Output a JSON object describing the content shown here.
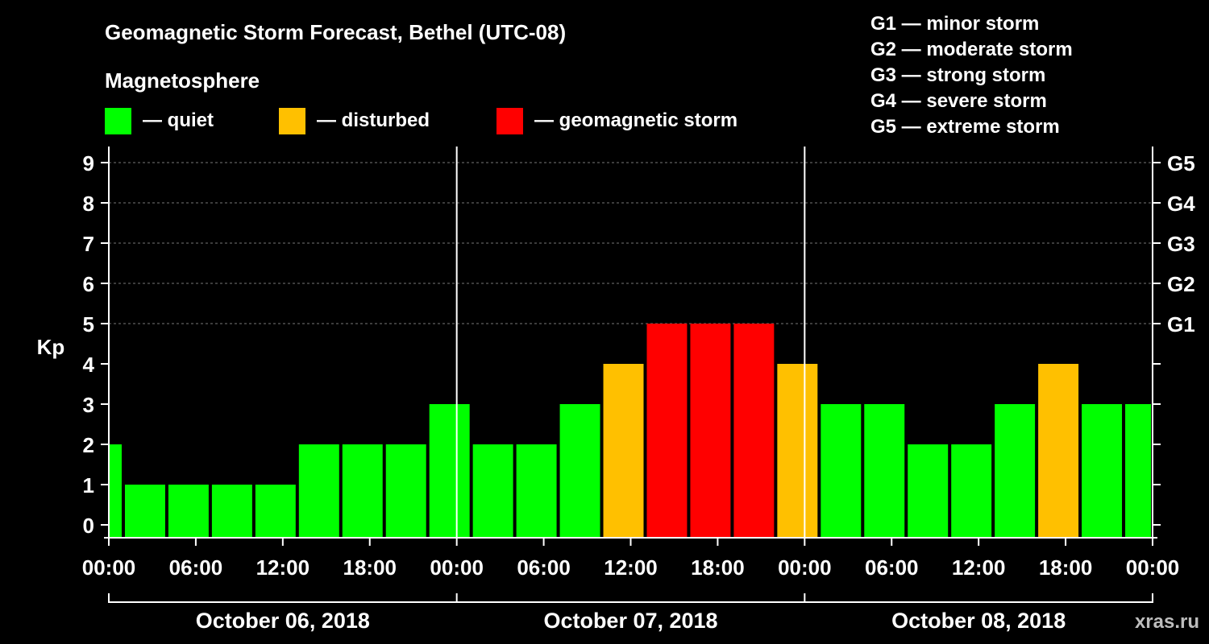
{
  "chart_data": {
    "type": "bar",
    "title": "Geomagnetic Storm Forecast, Bethel (UTC-08)",
    "legend_title": "Magnetosphere",
    "legend": [
      {
        "label": "— quiet",
        "color": "#00ff00"
      },
      {
        "label": "— disturbed",
        "color": "#ffc000"
      },
      {
        "label": "— geomagnetic storm",
        "color": "#ff0000"
      }
    ],
    "storm_scale": [
      "G1 — minor storm",
      "G2 — moderate storm",
      "G3 — strong storm",
      "G4 — severe storm",
      "G5 — extreme storm"
    ],
    "ylabel": "Kp",
    "ylim": [
      0,
      9
    ],
    "y_ticks": [
      "0",
      "1",
      "2",
      "3",
      "4",
      "5",
      "6",
      "7",
      "8",
      "9"
    ],
    "right_ticks": [
      {
        "kp": 5,
        "label": "G1"
      },
      {
        "kp": 6,
        "label": "G2"
      },
      {
        "kp": 7,
        "label": "G3"
      },
      {
        "kp": 8,
        "label": "G4"
      },
      {
        "kp": 9,
        "label": "G5"
      }
    ],
    "x_ticks": [
      "00:00",
      "06:00",
      "12:00",
      "18:00",
      "00:00",
      "06:00",
      "12:00",
      "18:00",
      "00:00",
      "06:00",
      "12:00",
      "18:00",
      "00:00"
    ],
    "dates": [
      "October 06, 2018",
      "October 07, 2018",
      "October 08, 2018"
    ],
    "xlim_hours": [
      0,
      72
    ],
    "bars": [
      {
        "start": 0,
        "end": 1,
        "kp": 2
      },
      {
        "start": 1,
        "end": 4,
        "kp": 1
      },
      {
        "start": 4,
        "end": 7,
        "kp": 1
      },
      {
        "start": 7,
        "end": 10,
        "kp": 1
      },
      {
        "start": 10,
        "end": 13,
        "kp": 1
      },
      {
        "start": 13,
        "end": 16,
        "kp": 2
      },
      {
        "start": 16,
        "end": 19,
        "kp": 2
      },
      {
        "start": 19,
        "end": 22,
        "kp": 2
      },
      {
        "start": 22,
        "end": 25,
        "kp": 3
      },
      {
        "start": 25,
        "end": 28,
        "kp": 2
      },
      {
        "start": 28,
        "end": 31,
        "kp": 2
      },
      {
        "start": 31,
        "end": 34,
        "kp": 3
      },
      {
        "start": 34,
        "end": 37,
        "kp": 4
      },
      {
        "start": 37,
        "end": 40,
        "kp": 5
      },
      {
        "start": 40,
        "end": 43,
        "kp": 5
      },
      {
        "start": 43,
        "end": 46,
        "kp": 5
      },
      {
        "start": 46,
        "end": 49,
        "kp": 4
      },
      {
        "start": 49,
        "end": 52,
        "kp": 3
      },
      {
        "start": 52,
        "end": 55,
        "kp": 3
      },
      {
        "start": 55,
        "end": 58,
        "kp": 2
      },
      {
        "start": 58,
        "end": 61,
        "kp": 2
      },
      {
        "start": 61,
        "end": 64,
        "kp": 3
      },
      {
        "start": 64,
        "end": 67,
        "kp": 4
      },
      {
        "start": 67,
        "end": 70,
        "kp": 3
      },
      {
        "start": 70,
        "end": 72,
        "kp": 3
      }
    ]
  },
  "watermark": "xras.ru"
}
